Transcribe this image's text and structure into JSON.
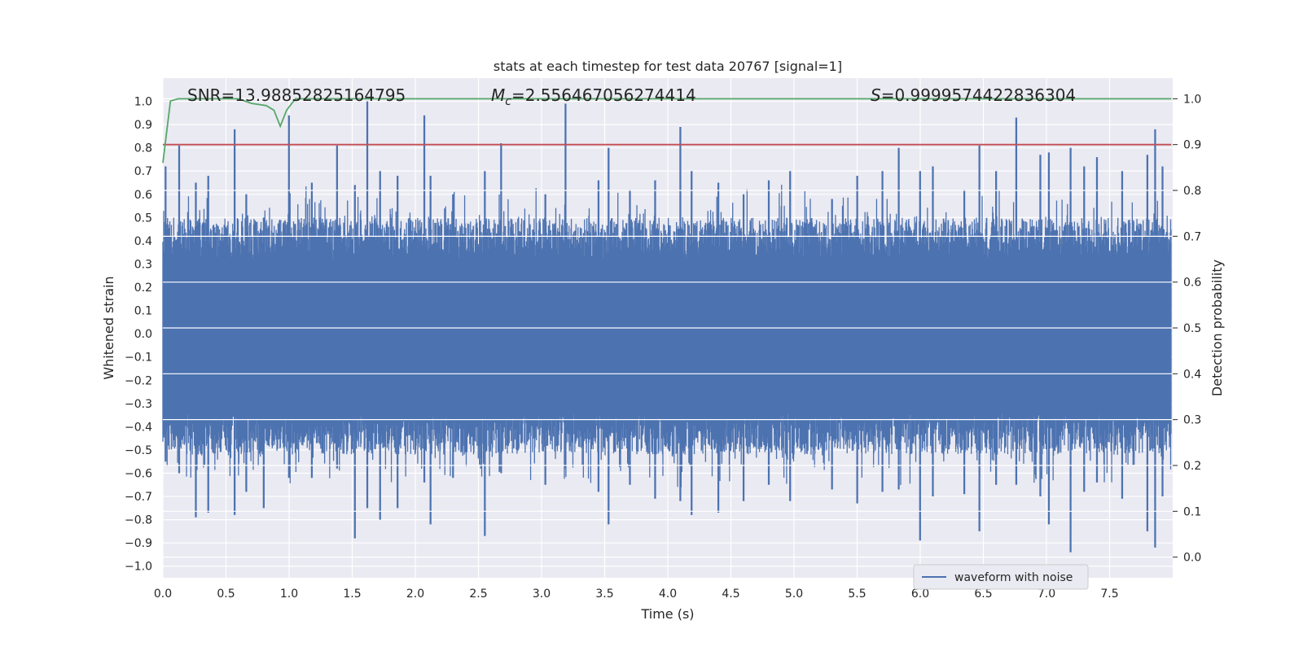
{
  "chart_data": {
    "type": "line",
    "title": "stats at each timestep for test data 20767 [signal=1]",
    "xlabel": "Time (s)",
    "ylabel": "Whitened strain",
    "y2label": "Detection probability",
    "xlim": [
      0.0,
      8.0
    ],
    "ylim": [
      -1.05,
      1.1
    ],
    "y2lim": [
      -0.045,
      1.045
    ],
    "xticks": [
      "0.0",
      "0.5",
      "1.0",
      "1.5",
      "2.0",
      "2.5",
      "3.0",
      "3.5",
      "4.0",
      "4.5",
      "5.0",
      "5.5",
      "6.0",
      "6.5",
      "7.0",
      "7.5"
    ],
    "yticks": [
      "1.0",
      "0.9",
      "0.8",
      "0.7",
      "0.6",
      "0.5",
      "0.4",
      "0.3",
      "0.2",
      "0.1",
      "0.0",
      "−0.1",
      "−0.2",
      "−0.3",
      "−0.4",
      "−0.5",
      "−0.6",
      "−0.7",
      "−0.8",
      "−0.9",
      "−1.0"
    ],
    "y2ticks": [
      "1.0",
      "0.9",
      "0.8",
      "0.7",
      "0.6",
      "0.5",
      "0.4",
      "0.3",
      "0.2",
      "0.1",
      "0.0"
    ],
    "grid": true,
    "legend_position": "lower-right",
    "annotations": {
      "snr": "SNR=13.98852825164795",
      "mc_symbol": "M",
      "mc_sub": "c",
      "mc_value": "=2.556467056274414",
      "s_symbol": "S",
      "s_value": "=0.9999574422836304"
    },
    "series": [
      {
        "name": "waveform with noise",
        "axis": "left",
        "color": "#4c72b0",
        "kind": "noise-envelope",
        "peaks": [
          [
            0.02,
            0.72,
            -0.55
          ],
          [
            0.13,
            0.81,
            -0.6
          ],
          [
            0.26,
            0.65,
            -0.79
          ],
          [
            0.36,
            0.68,
            -0.77
          ],
          [
            0.57,
            0.88,
            -0.78
          ],
          [
            0.66,
            0.6,
            -0.68
          ],
          [
            0.8,
            0.5,
            -0.75
          ],
          [
            1.0,
            0.94,
            -0.62
          ],
          [
            1.18,
            0.65,
            -0.62
          ],
          [
            1.38,
            0.81,
            -0.58
          ],
          [
            1.52,
            0.64,
            -0.88
          ],
          [
            1.62,
            1.0,
            -0.75
          ],
          [
            1.72,
            0.7,
            -0.8
          ],
          [
            1.86,
            0.68,
            -0.75
          ],
          [
            2.07,
            0.94,
            -0.64
          ],
          [
            2.12,
            0.68,
            -0.82
          ],
          [
            2.3,
            0.6,
            -0.62
          ],
          [
            2.55,
            0.7,
            -0.87
          ],
          [
            2.68,
            0.82,
            -0.6
          ],
          [
            3.03,
            0.6,
            -0.65
          ],
          [
            3.19,
            0.99,
            -0.58
          ],
          [
            3.45,
            0.66,
            -0.68
          ],
          [
            3.53,
            0.8,
            -0.82
          ],
          [
            3.7,
            0.62,
            -0.65
          ],
          [
            3.9,
            0.66,
            -0.71
          ],
          [
            4.1,
            0.89,
            -0.72
          ],
          [
            4.19,
            0.7,
            -0.78
          ],
          [
            4.4,
            0.65,
            -0.77
          ],
          [
            4.6,
            0.6,
            -0.72
          ],
          [
            4.8,
            0.66,
            -0.65
          ],
          [
            4.97,
            0.7,
            -0.72
          ],
          [
            5.3,
            0.58,
            -0.67
          ],
          [
            5.5,
            0.68,
            -0.73
          ],
          [
            5.7,
            0.7,
            -0.68
          ],
          [
            5.83,
            0.8,
            -0.67
          ],
          [
            6.0,
            0.7,
            -0.89
          ],
          [
            6.1,
            0.72,
            -0.7
          ],
          [
            6.35,
            0.62,
            -0.69
          ],
          [
            6.47,
            0.81,
            -0.85
          ],
          [
            6.6,
            0.7,
            -0.65
          ],
          [
            6.76,
            0.93,
            -0.65
          ],
          [
            6.95,
            0.77,
            -0.7
          ],
          [
            7.02,
            0.78,
            -0.82
          ],
          [
            7.19,
            0.8,
            -0.94
          ],
          [
            7.3,
            0.72,
            -0.68
          ],
          [
            7.4,
            0.76,
            -0.64
          ],
          [
            7.6,
            0.7,
            -0.71
          ],
          [
            7.8,
            0.77,
            -0.85
          ],
          [
            7.86,
            0.88,
            -0.92
          ],
          [
            7.92,
            0.72,
            -0.7
          ]
        ]
      },
      {
        "name": "",
        "axis": "right",
        "color": "#55a868",
        "points": [
          [
            0.0,
            0.86
          ],
          [
            0.06,
            0.995
          ],
          [
            0.12,
            1.0
          ],
          [
            0.6,
            1.0
          ],
          [
            0.7,
            0.99
          ],
          [
            0.82,
            0.985
          ],
          [
            0.88,
            0.975
          ],
          [
            0.93,
            0.94
          ],
          [
            0.98,
            0.975
          ],
          [
            1.05,
            1.0
          ],
          [
            7.99,
            1.0
          ]
        ]
      },
      {
        "name": "",
        "axis": "right",
        "color": "#c44e52",
        "points": [
          [
            0.0,
            0.9
          ],
          [
            7.99,
            0.9
          ]
        ]
      }
    ]
  }
}
